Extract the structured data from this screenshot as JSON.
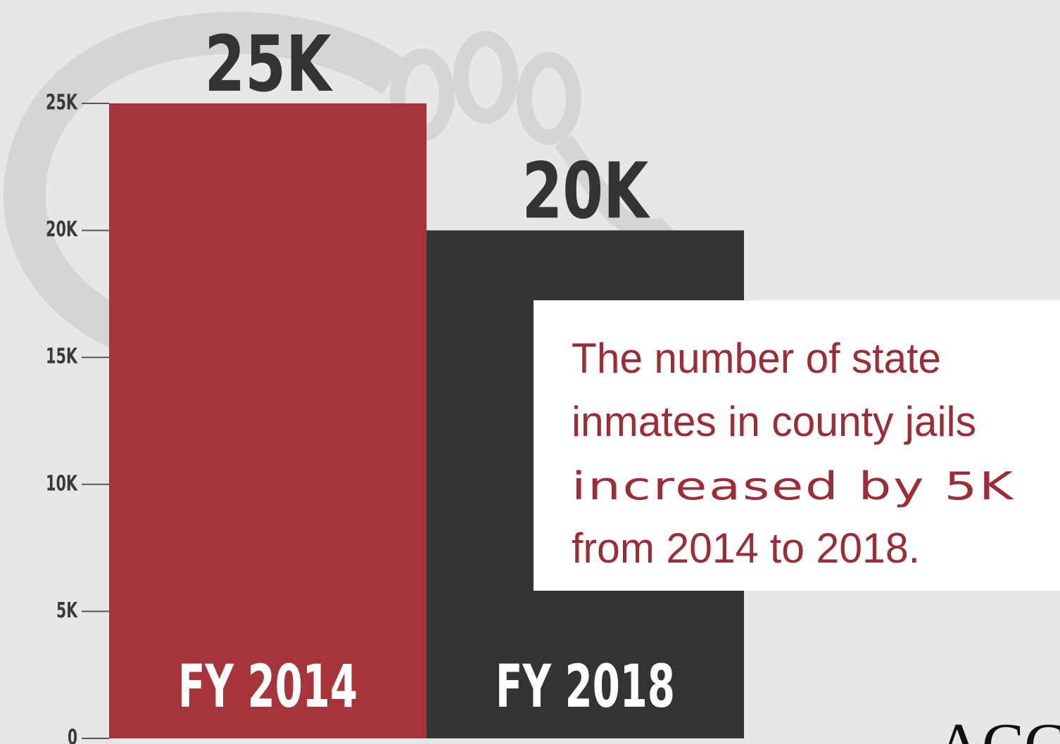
{
  "chart_data": {
    "type": "bar",
    "categories": [
      "FY 2014",
      "FY 2018"
    ],
    "values": [
      25000,
      20000
    ],
    "value_labels": [
      "25K",
      "20K"
    ],
    "colors": [
      "#a6343a",
      "#333333"
    ],
    "ylim": [
      0,
      25000
    ],
    "yticks": [
      0,
      {
        "value": 5000,
        "label": "5K"
      },
      {
        "value": 10000,
        "label": "10K"
      },
      {
        "value": 15000,
        "label": "15K"
      },
      {
        "value": 20000,
        "label": "20K"
      },
      {
        "value": 25000,
        "label": "25K"
      }
    ],
    "annotation": [
      "The number of state",
      "inmates in county jails",
      "increased by 5K",
      "from 2014 to 2018."
    ],
    "logo": "ACCA"
  }
}
